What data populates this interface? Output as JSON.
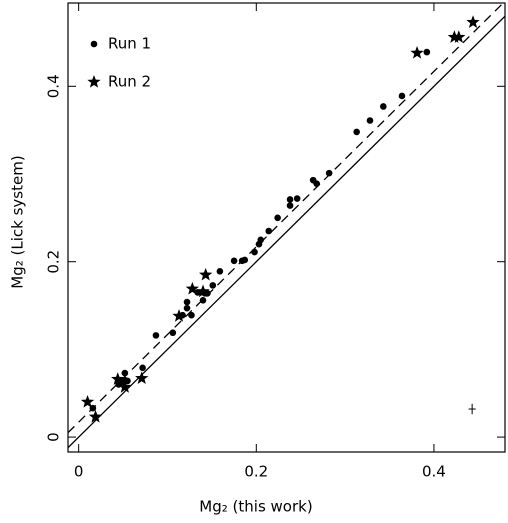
{
  "chart_data": {
    "type": "scatter",
    "xlabel": "Mg₂ (this work)",
    "ylabel": "Mg₂ (Lick system)",
    "xlim": [
      -0.012,
      0.48
    ],
    "ylim": [
      -0.017,
      0.495
    ],
    "xticks": [
      0,
      0.2,
      0.4
    ],
    "yticks": [
      0,
      0.2,
      0.4
    ],
    "legend": "upper left",
    "series": [
      {
        "name": "Run 1",
        "marker": "dot",
        "color": "#000000",
        "x": [
          0.016,
          0.045,
          0.049,
          0.052,
          0.055,
          0.052,
          0.072,
          0.087,
          0.106,
          0.117,
          0.122,
          0.122,
          0.127,
          0.134,
          0.14,
          0.142,
          0.145,
          0.151,
          0.159,
          0.175,
          0.184,
          0.187,
          0.198,
          0.203,
          0.205,
          0.214,
          0.224,
          0.238,
          0.238,
          0.246,
          0.264,
          0.268,
          0.282,
          0.313,
          0.328,
          0.343,
          0.364,
          0.392
        ],
        "y": [
          0.033,
          0.06,
          0.063,
          0.065,
          0.064,
          0.073,
          0.079,
          0.116,
          0.119,
          0.139,
          0.147,
          0.154,
          0.139,
          0.165,
          0.156,
          0.164,
          0.164,
          0.173,
          0.189,
          0.201,
          0.201,
          0.202,
          0.211,
          0.22,
          0.225,
          0.235,
          0.25,
          0.264,
          0.271,
          0.272,
          0.293,
          0.289,
          0.301,
          0.348,
          0.361,
          0.377,
          0.389,
          0.439
        ]
      },
      {
        "name": "Run 2",
        "marker": "star",
        "color": "#000000",
        "x": [
          0.01,
          0.019,
          0.044,
          0.052,
          0.071,
          0.113,
          0.128,
          0.14,
          0.143,
          0.381,
          0.423,
          0.428,
          0.444
        ],
        "y": [
          0.04,
          0.023,
          0.066,
          0.057,
          0.067,
          0.138,
          0.169,
          0.166,
          0.185,
          0.438,
          0.456,
          0.456,
          0.473
        ]
      }
    ],
    "reference_lines": [
      {
        "slope": 1,
        "intercept": 0,
        "style": "solid"
      },
      {
        "slope": 1,
        "intercept": 0.017,
        "style": "dashed"
      }
    ],
    "error_bar": {
      "x": 0.443,
      "y": 0.032,
      "xerr": 0.004,
      "yerr": 0.006
    }
  }
}
